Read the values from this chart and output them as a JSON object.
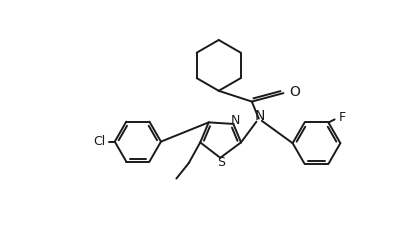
{
  "bg_color": "#ffffff",
  "line_color": "#1a1a1a",
  "line_width": 1.4,
  "font_size": 9,
  "figsize": [
    4.17,
    2.37
  ],
  "dpi": 100,
  "xlim": [
    0,
    417
  ],
  "ylim": [
    0,
    237
  ]
}
